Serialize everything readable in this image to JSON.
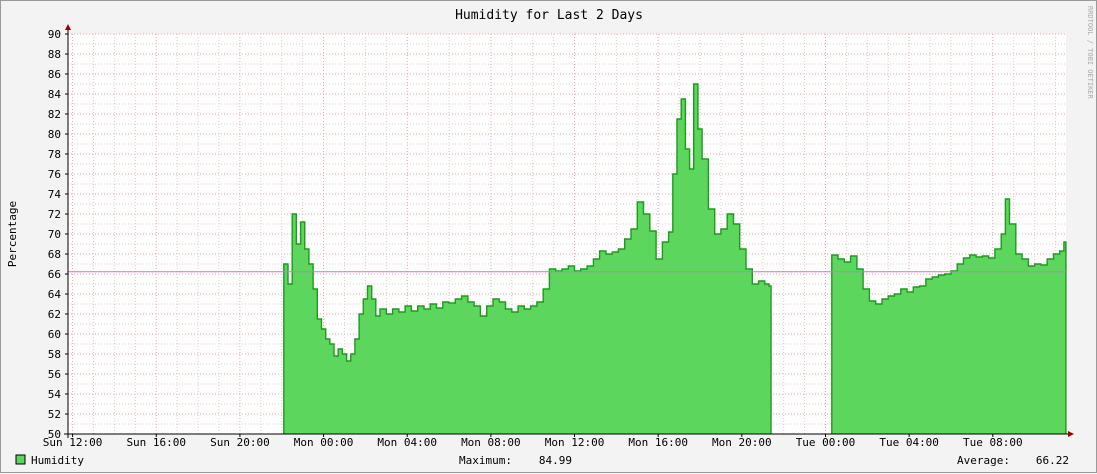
{
  "chart_data": {
    "type": "area",
    "title": "Humidity for Last 2 Days",
    "ylabel": "Percentage",
    "watermark": "RRDTOOL / TOBI OETIKER",
    "ylim": [
      50,
      90
    ],
    "y_ticks": [
      50,
      52,
      54,
      56,
      58,
      60,
      62,
      64,
      66,
      68,
      70,
      72,
      74,
      76,
      78,
      80,
      82,
      84,
      86,
      88,
      90
    ],
    "x_tick_labels": [
      "Sun 12:00",
      "Sun 16:00",
      "Sun 20:00",
      "Mon 00:00",
      "Mon 04:00",
      "Mon 08:00",
      "Mon 12:00",
      "Mon 16:00",
      "Mon 20:00",
      "Tue 00:00",
      "Tue 04:00",
      "Tue 08:00"
    ],
    "x_axis_unit": "hours since Sun 12:00",
    "x_range_hours": [
      -0.22,
      47.5
    ],
    "fill_color": "#5cd65c",
    "line_color": "#1f9a1f",
    "average_line_color": "#cc77cc",
    "series": [
      {
        "name": "Humidity",
        "segments": [
          [
            [
              10.1,
              67
            ],
            [
              10.3,
              65
            ],
            [
              10.5,
              72
            ],
            [
              10.7,
              69
            ],
            [
              10.9,
              71.2
            ],
            [
              11.1,
              68.5
            ],
            [
              11.3,
              67
            ],
            [
              11.5,
              64.5
            ],
            [
              11.7,
              61.5
            ],
            [
              11.9,
              60.5
            ],
            [
              12.1,
              59.5
            ],
            [
              12.3,
              59
            ],
            [
              12.5,
              57.8
            ],
            [
              12.7,
              58.5
            ],
            [
              12.9,
              58
            ],
            [
              13.1,
              57.3
            ],
            [
              13.3,
              58
            ],
            [
              13.5,
              59.5
            ],
            [
              13.7,
              62
            ],
            [
              13.9,
              63.5
            ],
            [
              14.1,
              64.8
            ],
            [
              14.3,
              63.5
            ],
            [
              14.5,
              61.8
            ],
            [
              14.7,
              62.5
            ],
            [
              15.0,
              62
            ],
            [
              15.3,
              62.5
            ],
            [
              15.6,
              62.2
            ],
            [
              15.9,
              62.8
            ],
            [
              16.2,
              62.3
            ],
            [
              16.5,
              62.8
            ],
            [
              16.8,
              62.5
            ],
            [
              17.1,
              63
            ],
            [
              17.4,
              62.6
            ],
            [
              17.7,
              63.2
            ],
            [
              18.0,
              63.1
            ],
            [
              18.3,
              63.5
            ],
            [
              18.6,
              63.8
            ],
            [
              18.9,
              63.2
            ],
            [
              19.2,
              62.8
            ],
            [
              19.5,
              61.8
            ],
            [
              19.8,
              62.8
            ],
            [
              20.1,
              63.5
            ],
            [
              20.4,
              63.2
            ],
            [
              20.7,
              62.5
            ],
            [
              21.0,
              62.2
            ],
            [
              21.3,
              62.8
            ],
            [
              21.6,
              62.5
            ],
            [
              21.9,
              62.8
            ],
            [
              22.2,
              63.2
            ],
            [
              22.5,
              64.5
            ],
            [
              22.8,
              66.5
            ],
            [
              23.1,
              66.3
            ],
            [
              23.4,
              66.5
            ],
            [
              23.7,
              66.8
            ],
            [
              24.0,
              66.3
            ],
            [
              24.3,
              66.5
            ],
            [
              24.6,
              66.8
            ],
            [
              24.9,
              67.5
            ],
            [
              25.2,
              68.3
            ],
            [
              25.5,
              68
            ],
            [
              25.8,
              68.2
            ],
            [
              26.1,
              68.5
            ],
            [
              26.4,
              69.5
            ],
            [
              26.7,
              70.5
            ],
            [
              27.0,
              73.2
            ],
            [
              27.3,
              72
            ],
            [
              27.6,
              70.3
            ],
            [
              27.9,
              67.5
            ],
            [
              28.2,
              69.2
            ],
            [
              28.5,
              70.2
            ],
            [
              28.7,
              76
            ],
            [
              28.9,
              81.5
            ],
            [
              29.1,
              83.5
            ],
            [
              29.3,
              78.5
            ],
            [
              29.5,
              76.5
            ],
            [
              29.7,
              85
            ],
            [
              29.9,
              80.5
            ],
            [
              30.1,
              77.5
            ],
            [
              30.4,
              72.5
            ],
            [
              30.7,
              70
            ],
            [
              31.0,
              70.5
            ],
            [
              31.3,
              72
            ],
            [
              31.6,
              71
            ],
            [
              31.9,
              68.5
            ],
            [
              32.2,
              66.5
            ],
            [
              32.5,
              65
            ],
            [
              32.8,
              65.3
            ],
            [
              33.1,
              65
            ],
            [
              33.3,
              64.8
            ]
          ],
          [
            [
              36.3,
              67.9
            ],
            [
              36.6,
              67.5
            ],
            [
              36.9,
              67.2
            ],
            [
              37.2,
              67.8
            ],
            [
              37.5,
              66.5
            ],
            [
              37.8,
              64.5
            ],
            [
              38.1,
              63.3
            ],
            [
              38.4,
              63
            ],
            [
              38.7,
              63.5
            ],
            [
              39.0,
              63.8
            ],
            [
              39.3,
              64
            ],
            [
              39.6,
              64.5
            ],
            [
              39.9,
              64.2
            ],
            [
              40.2,
              64.7
            ],
            [
              40.5,
              64.8
            ],
            [
              40.8,
              65.5
            ],
            [
              41.1,
              65.7
            ],
            [
              41.4,
              65.9
            ],
            [
              41.7,
              66
            ],
            [
              42.0,
              66.3
            ],
            [
              42.3,
              67
            ],
            [
              42.6,
              67.6
            ],
            [
              42.9,
              67.9
            ],
            [
              43.2,
              67.7
            ],
            [
              43.5,
              67.8
            ],
            [
              43.8,
              67.6
            ],
            [
              44.1,
              68.5
            ],
            [
              44.4,
              70
            ],
            [
              44.6,
              73.5
            ],
            [
              44.8,
              71
            ],
            [
              45.1,
              68
            ],
            [
              45.4,
              67.5
            ],
            [
              45.7,
              66.8
            ],
            [
              46.0,
              67
            ],
            [
              46.3,
              66.9
            ],
            [
              46.6,
              67.5
            ],
            [
              46.9,
              68
            ],
            [
              47.2,
              68.3
            ],
            [
              47.4,
              69.2
            ]
          ]
        ]
      }
    ],
    "legend": {
      "label": "Humidity",
      "max_label": "Maximum:",
      "max_value": "84.99",
      "avg_label": "Average:",
      "avg_value": "66.22",
      "avg_numeric": 66.22
    }
  }
}
